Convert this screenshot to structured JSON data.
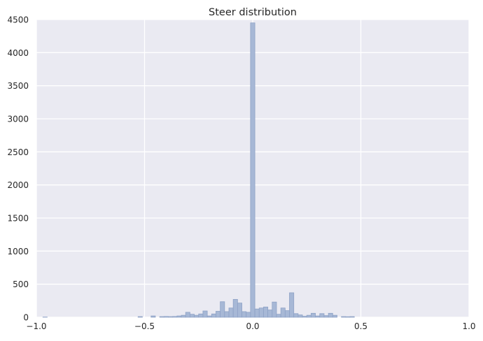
{
  "chart_data": {
    "type": "bar",
    "title": "Steer distribution",
    "xlabel": "",
    "ylabel": "",
    "xlim": [
      -1.0,
      1.0
    ],
    "ylim": [
      0,
      4500
    ],
    "xticks": [
      -1.0,
      -0.5,
      0.0,
      0.5,
      1.0
    ],
    "xtick_labels": [
      "−1.0",
      "−0.5",
      "0.0",
      "0.5",
      "1.0"
    ],
    "yticks": [
      0,
      500,
      1000,
      1500,
      2000,
      2500,
      3000,
      3500,
      4000,
      4500
    ],
    "ytick_labels": [
      "0",
      "500",
      "1000",
      "1500",
      "2000",
      "2500",
      "3000",
      "3500",
      "4000",
      "4500"
    ],
    "grid": true,
    "colors": {
      "background": "#eaeaf2",
      "grid": "#ffffff",
      "bar_fill": "#a7b8d6",
      "bar_edge": "#8ea2c6"
    },
    "bin_width": 0.02,
    "bins": [
      {
        "x": -0.96,
        "y": 3
      },
      {
        "x": -0.52,
        "y": 10
      },
      {
        "x": -0.46,
        "y": 20
      },
      {
        "x": -0.42,
        "y": 10
      },
      {
        "x": -0.4,
        "y": 12
      },
      {
        "x": -0.38,
        "y": 10
      },
      {
        "x": -0.36,
        "y": 12
      },
      {
        "x": -0.34,
        "y": 20
      },
      {
        "x": -0.32,
        "y": 30
      },
      {
        "x": -0.3,
        "y": 75
      },
      {
        "x": -0.28,
        "y": 45
      },
      {
        "x": -0.26,
        "y": 30
      },
      {
        "x": -0.24,
        "y": 50
      },
      {
        "x": -0.22,
        "y": 95
      },
      {
        "x": -0.2,
        "y": 20
      },
      {
        "x": -0.18,
        "y": 50
      },
      {
        "x": -0.16,
        "y": 90
      },
      {
        "x": -0.14,
        "y": 235
      },
      {
        "x": -0.12,
        "y": 85
      },
      {
        "x": -0.1,
        "y": 140
      },
      {
        "x": -0.08,
        "y": 270
      },
      {
        "x": -0.06,
        "y": 215
      },
      {
        "x": -0.04,
        "y": 85
      },
      {
        "x": -0.02,
        "y": 75
      },
      {
        "x": 0.0,
        "y": 4450
      },
      {
        "x": 0.02,
        "y": 125
      },
      {
        "x": 0.04,
        "y": 140
      },
      {
        "x": 0.06,
        "y": 155
      },
      {
        "x": 0.08,
        "y": 110
      },
      {
        "x": 0.1,
        "y": 230
      },
      {
        "x": 0.12,
        "y": 45
      },
      {
        "x": 0.14,
        "y": 140
      },
      {
        "x": 0.16,
        "y": 100
      },
      {
        "x": 0.18,
        "y": 370
      },
      {
        "x": 0.2,
        "y": 55
      },
      {
        "x": 0.22,
        "y": 35
      },
      {
        "x": 0.24,
        "y": 15
      },
      {
        "x": 0.26,
        "y": 30
      },
      {
        "x": 0.28,
        "y": 60
      },
      {
        "x": 0.3,
        "y": 20
      },
      {
        "x": 0.32,
        "y": 55
      },
      {
        "x": 0.34,
        "y": 25
      },
      {
        "x": 0.36,
        "y": 60
      },
      {
        "x": 0.38,
        "y": 30
      },
      {
        "x": 0.42,
        "y": 10
      },
      {
        "x": 0.44,
        "y": 8
      },
      {
        "x": 0.46,
        "y": 10
      }
    ]
  }
}
